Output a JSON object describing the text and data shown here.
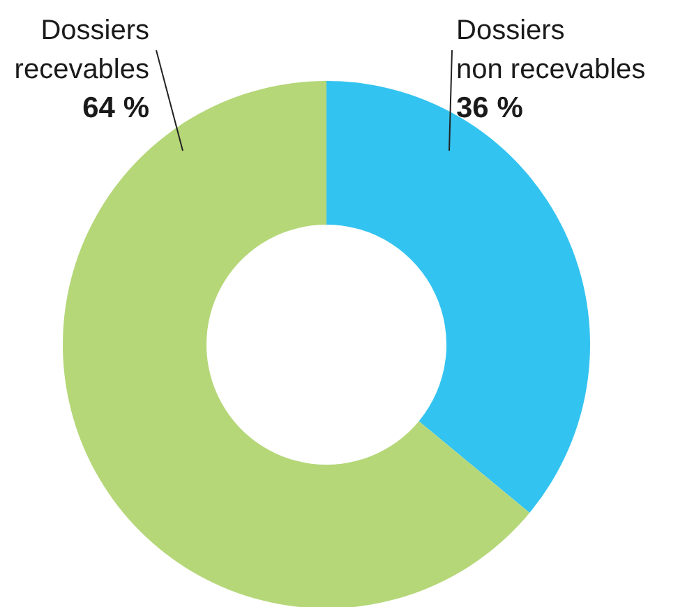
{
  "chart_data": {
    "type": "donut",
    "categories": [
      "Dossiers non recevables",
      "Dossiers recevables"
    ],
    "values": [
      36,
      64
    ],
    "colors": [
      "#33c3f0",
      "#b5d778"
    ],
    "value_labels": [
      "36 %",
      "64 %"
    ]
  }
}
